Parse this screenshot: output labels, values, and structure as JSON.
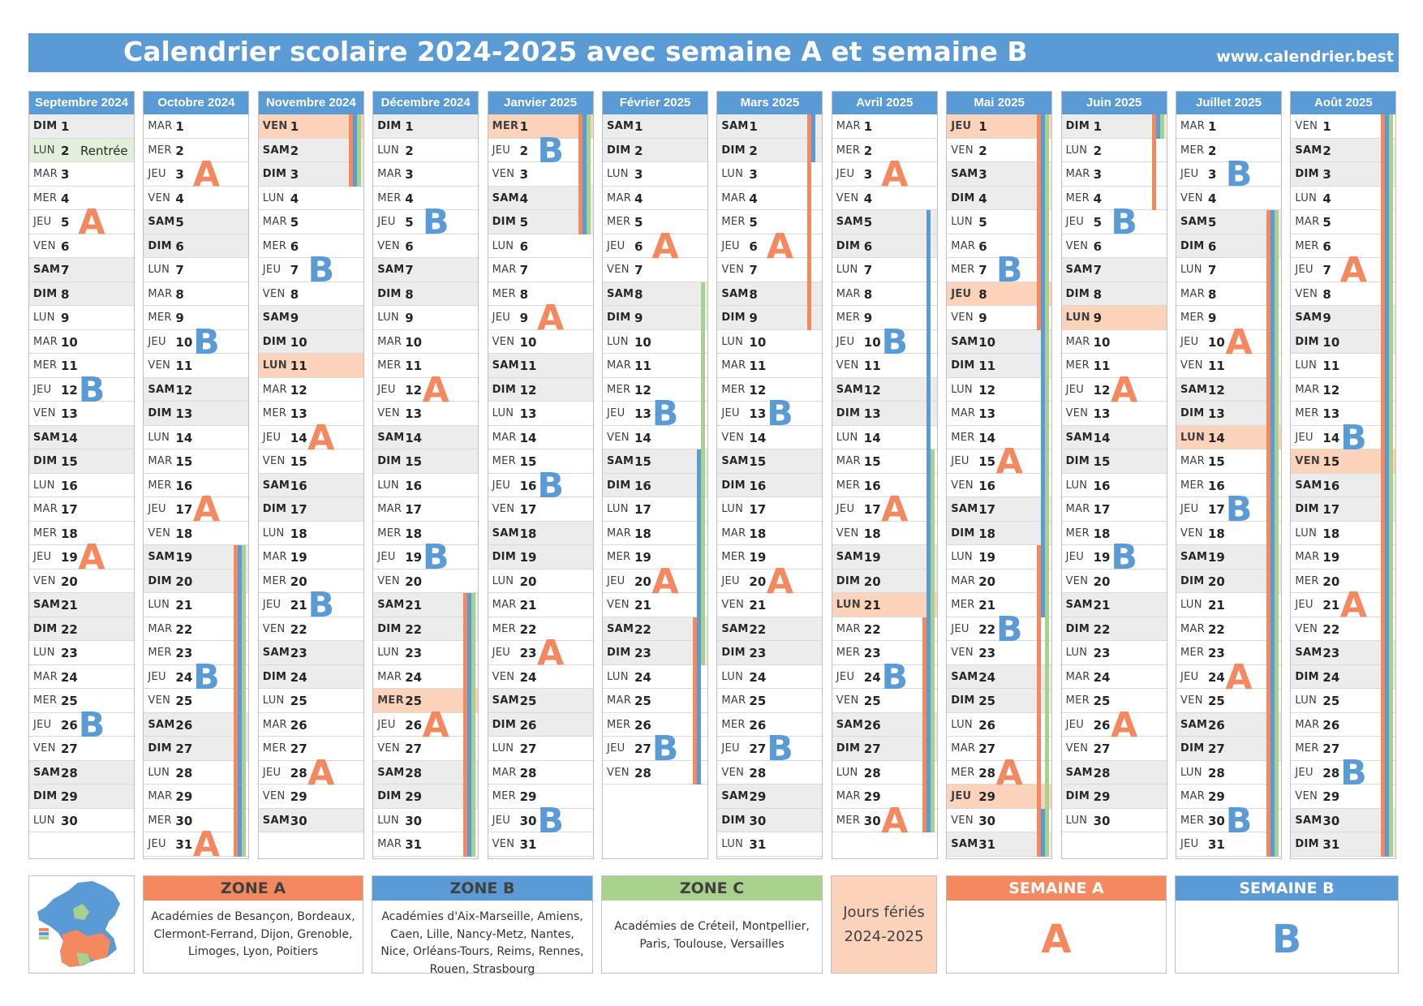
{
  "title": "Calendrier scolaire 2024-2025 avec semaine A et semaine B",
  "website": "www.calendrier.best",
  "colors": {
    "zone_a": "#f4895f",
    "zone_b": "#5b9bd5",
    "zone_c": "#a9d18e",
    "header": "#5b9bd5",
    "weekend": "#ececec",
    "holiday": "#fbd3ba",
    "rentree": "#e2efda"
  },
  "months": [
    {
      "name": "Septembre 2024",
      "days": 30,
      "start": 6,
      "notes": {
        "2": "Rentrée"
      },
      "holidays": [],
      "special": {
        "2": "ren"
      },
      "weeks": [
        [
          "A",
          5
        ],
        [
          "B",
          12
        ],
        [
          "A",
          19
        ],
        [
          "B",
          26
        ]
      ],
      "bars": []
    },
    {
      "name": "Octobre 2024",
      "days": 31,
      "start": 1,
      "notes": {},
      "holidays": [],
      "special": {},
      "weeks": [
        [
          "A",
          3
        ],
        [
          "B",
          10
        ],
        [
          "A",
          17
        ],
        [
          "B",
          24
        ],
        [
          "A",
          31
        ]
      ],
      "bars": []
    },
    {
      "name": "Novembre 2024",
      "days": 30,
      "start": 4,
      "notes": {},
      "holidays": [
        1,
        11
      ],
      "special": {},
      "weeks": [
        [
          "B",
          7
        ],
        [
          "A",
          14
        ],
        [
          "B",
          21
        ],
        [
          "A",
          28
        ]
      ],
      "bars": []
    },
    {
      "name": "Décembre 2024",
      "days": 31,
      "start": 6,
      "notes": {},
      "holidays": [
        25
      ],
      "special": {},
      "weeks": [
        [
          "B",
          5
        ],
        [
          "A",
          12
        ],
        [
          "B",
          19
        ],
        [
          "A",
          26
        ]
      ],
      "bars": []
    },
    {
      "name": "Janvier 2025",
      "days": 31,
      "start": 2,
      "notes": {},
      "holidays": [
        1
      ],
      "special": {},
      "weeks": [
        [
          "B",
          2
        ],
        [
          "A",
          9
        ],
        [
          "B",
          16
        ],
        [
          "A",
          23
        ],
        [
          "B",
          30
        ]
      ],
      "bars": []
    },
    {
      "name": "Février 2025",
      "days": 28,
      "start": 5,
      "notes": {},
      "holidays": [],
      "special": {},
      "weeks": [
        [
          "A",
          6
        ],
        [
          "B",
          13
        ],
        [
          "A",
          20
        ],
        [
          "B",
          27
        ]
      ],
      "bars": []
    },
    {
      "name": "Mars 2025",
      "days": 31,
      "start": 5,
      "notes": {},
      "holidays": [],
      "special": {},
      "weeks": [
        [
          "A",
          6
        ],
        [
          "B",
          13
        ],
        [
          "A",
          20
        ],
        [
          "B",
          27
        ]
      ],
      "bars": []
    },
    {
      "name": "Avril 2025",
      "days": 30,
      "start": 1,
      "notes": {},
      "holidays": [
        21
      ],
      "special": {},
      "weeks": [
        [
          "A",
          3
        ],
        [
          "B",
          10
        ],
        [
          "A",
          17
        ],
        [
          "B",
          24
        ],
        [
          "A",
          30
        ]
      ],
      "bars": []
    },
    {
      "name": "Mai 2025",
      "days": 31,
      "start": 3,
      "notes": {},
      "holidays": [
        1,
        8,
        29
      ],
      "special": {},
      "weeks": [
        [
          "B",
          7
        ],
        [
          "A",
          15
        ],
        [
          "B",
          22
        ],
        [
          "A",
          28
        ]
      ],
      "bars": []
    },
    {
      "name": "Juin 2025",
      "days": 30,
      "start": 6,
      "notes": {},
      "holidays": [
        9
      ],
      "special": {},
      "weeks": [
        [
          "B",
          5
        ],
        [
          "A",
          12
        ],
        [
          "B",
          19
        ],
        [
          "A",
          26
        ]
      ],
      "bars": []
    },
    {
      "name": "Juillet 2025",
      "days": 31,
      "start": 1,
      "notes": {},
      "holidays": [
        14
      ],
      "special": {},
      "weeks": [
        [
          "B",
          3
        ],
        [
          "A",
          10
        ],
        [
          "B",
          17
        ],
        [
          "A",
          24
        ],
        [
          "B",
          30
        ]
      ],
      "bars": []
    },
    {
      "name": "Août 2025",
      "days": 31,
      "start": 4,
      "notes": {},
      "holidays": [
        15
      ],
      "special": {},
      "weeks": [
        [
          "A",
          7
        ],
        [
          "B",
          14
        ],
        [
          "A",
          21
        ],
        [
          "B",
          28
        ]
      ],
      "bars": []
    }
  ],
  "day_names": [
    "LUN",
    "MAR",
    "MER",
    "JEU",
    "VEN",
    "SAM",
    "DIM"
  ],
  "holiday_periods": [
    {
      "zone": "A",
      "from": [
        1,
        19
      ],
      "to": [
        2,
        3
      ]
    },
    {
      "zone": "B",
      "from": [
        1,
        19
      ],
      "to": [
        2,
        3
      ]
    },
    {
      "zone": "C",
      "from": [
        1,
        19
      ],
      "to": [
        2,
        3
      ]
    },
    {
      "zone": "A",
      "from": [
        3,
        21
      ],
      "to": [
        4,
        5
      ]
    },
    {
      "zone": "B",
      "from": [
        3,
        21
      ],
      "to": [
        4,
        5
      ]
    },
    {
      "zone": "C",
      "from": [
        3,
        21
      ],
      "to": [
        4,
        5
      ]
    },
    {
      "zone": "C",
      "from": [
        5,
        8
      ],
      "to": [
        5,
        23
      ]
    },
    {
      "zone": "B",
      "from": [
        5,
        15
      ],
      "to": [
        6,
        2
      ]
    },
    {
      "zone": "A",
      "from": [
        5,
        22
      ],
      "to": [
        6,
        9
      ]
    },
    {
      "zone": "B",
      "from": [
        7,
        5
      ],
      "to": [
        7,
        23
      ]
    },
    {
      "zone": "A",
      "from": [
        7,
        22
      ],
      "to": [
        8,
        9
      ]
    },
    {
      "zone": "C",
      "from": [
        7,
        15
      ],
      "to": [
        8,
        30
      ]
    },
    {
      "zone": "A",
      "from": [
        8,
        19
      ],
      "to": [
        9,
        4
      ]
    },
    {
      "zone": "B",
      "from": [
        7,
        5
      ],
      "to": [
        8,
        21
      ]
    },
    {
      "zone": "A",
      "from": [
        8,
        30
      ],
      "to": [
        9,
        1
      ]
    },
    {
      "zone": "B",
      "from": [
        8,
        30
      ],
      "to": [
        9,
        1
      ]
    },
    {
      "zone": "C",
      "from": [
        8,
        30
      ],
      "to": [
        9,
        1
      ]
    },
    {
      "zone": "A",
      "from": [
        10,
        5
      ],
      "to": [
        11,
        31
      ]
    },
    {
      "zone": "B",
      "from": [
        10,
        5
      ],
      "to": [
        11,
        31
      ]
    },
    {
      "zone": "C",
      "from": [
        10,
        5
      ],
      "to": [
        11,
        31
      ]
    }
  ],
  "legend": {
    "zone_a": {
      "title": "ZONE A",
      "text": "Académies de Besançon, Bordeaux, Clermont-Ferrand, Dijon, Grenoble, Limoges, Lyon, Poitiers"
    },
    "zone_b": {
      "title": "ZONE B",
      "text": "Académies d'Aix-Marseille, Amiens, Caen, Lille, Nancy-Metz, Nantes, Nice, Orléans-Tours, Reims, Rennes, Rouen, Strasbourg"
    },
    "zone_c": {
      "title": "ZONE C",
      "text": "Académies de Créteil, Montpellier, Paris, Toulouse, Versailles"
    },
    "feries": {
      "line1": "Jours fériés",
      "line2": "2024-2025"
    },
    "semaine_a": {
      "title": "SEMAINE A",
      "letter": "A"
    },
    "semaine_b": {
      "title": "SEMAINE B",
      "letter": "B"
    }
  }
}
